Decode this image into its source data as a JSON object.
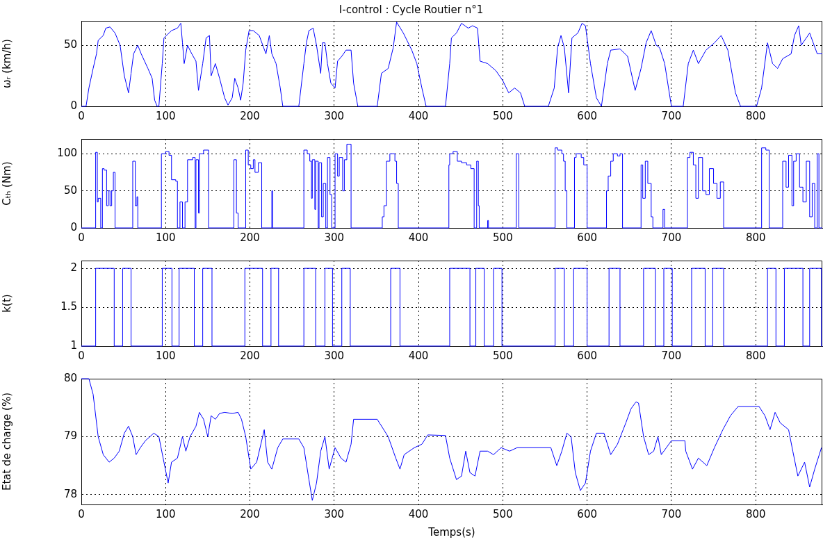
{
  "chart_data": [
    {
      "type": "line",
      "title": "I-control : Cycle Routier n°1",
      "ylabel": "ωᵣ (km/h)",
      "color": "#0000ff",
      "marker": "none",
      "grid": true,
      "legend": false,
      "xlim": [
        0,
        879
      ],
      "xticks": [
        0,
        100,
        200,
        300,
        400,
        500,
        600,
        700,
        800
      ],
      "ylim": [
        0,
        70
      ],
      "yticks": [
        0,
        50
      ],
      "x": [
        0,
        5.6,
        9,
        14,
        18,
        20,
        26,
        29,
        34,
        40,
        46,
        51,
        56,
        59,
        62,
        67,
        71,
        79,
        84,
        87,
        90,
        92,
        96,
        98,
        107,
        114,
        118,
        120,
        122,
        126,
        131,
        136,
        139,
        144,
        148,
        152,
        154,
        159,
        164,
        170,
        174,
        179,
        182,
        186,
        189,
        192,
        195,
        199,
        204,
        211,
        219,
        223,
        226,
        231,
        236,
        239,
        258,
        264,
        267,
        270,
        275,
        279,
        284,
        286,
        289,
        292,
        296,
        301,
        304,
        309,
        314,
        320,
        323,
        328,
        351,
        356,
        364,
        370,
        374,
        382,
        392,
        398,
        404,
        409,
        432,
        437,
        439,
        445,
        451,
        459,
        464,
        470,
        473,
        482,
        492,
        500,
        507,
        514,
        521,
        526,
        554,
        561,
        565,
        569,
        573,
        578,
        582,
        589,
        594,
        598,
        604,
        611,
        617,
        624,
        628,
        639,
        648,
        657,
        664,
        670,
        676,
        682,
        686,
        692,
        700,
        714,
        720,
        726,
        732,
        741,
        751,
        759,
        767,
        776,
        782,
        801,
        807,
        814,
        820,
        826,
        832,
        842,
        846,
        851,
        854,
        864,
        873,
        879
      ],
      "values": [
        0,
        0,
        15,
        31,
        43,
        54,
        58,
        64,
        65,
        60,
        50,
        25,
        11,
        27,
        43,
        50,
        43,
        31,
        23,
        5,
        0,
        0,
        35,
        56,
        62,
        64,
        68,
        52,
        35,
        50,
        43,
        37,
        13,
        35,
        56,
        58,
        25,
        35,
        23,
        7,
        1,
        7,
        23,
        15,
        5,
        19,
        46,
        62,
        62,
        58,
        43,
        58,
        43,
        35,
        15,
        0,
        0,
        35,
        52,
        62,
        64,
        50,
        27,
        52,
        52,
        35,
        19,
        15,
        37,
        41,
        46,
        46,
        19,
        0,
        0,
        27,
        31,
        48,
        69,
        60,
        46,
        35,
        15,
        0,
        0,
        35,
        56,
        60,
        68,
        64,
        66,
        64,
        37,
        35,
        29,
        21,
        11,
        15,
        11,
        0,
        0,
        15,
        48,
        58,
        48,
        11,
        56,
        60,
        68,
        66,
        35,
        7,
        0,
        35,
        46,
        47,
        41,
        13,
        31,
        52,
        62,
        50,
        48,
        35,
        0,
        0,
        35,
        46,
        35,
        46,
        52,
        58,
        46,
        11,
        0,
        0,
        15,
        52,
        35,
        31,
        39,
        43,
        58,
        66,
        50,
        60,
        43,
        43
      ]
    },
    {
      "type": "step",
      "ylabel": "Cₜₕ (Nm)",
      "color": "#0000ff",
      "marker": "none",
      "grid": true,
      "legend": false,
      "xlim": [
        0,
        879
      ],
      "xticks": [
        0,
        100,
        200,
        300,
        400,
        500,
        600,
        700,
        800
      ],
      "ylim": [
        0,
        120
      ],
      "yticks": [
        0,
        50,
        100
      ],
      "x": [
        0,
        17,
        19,
        20,
        23,
        25,
        27,
        30,
        32,
        34,
        36,
        38,
        40,
        61,
        64,
        66,
        67,
        95,
        100,
        104,
        107,
        112,
        114,
        117,
        120,
        123,
        126,
        132,
        135,
        136,
        139,
        140,
        145,
        151,
        181,
        184,
        186,
        195,
        198,
        201,
        204,
        206,
        210,
        214,
        226,
        227,
        264,
        268,
        271,
        273,
        274,
        277,
        278,
        281,
        282,
        285,
        287,
        290,
        292,
        295,
        297,
        301,
        304,
        306,
        310,
        312,
        315,
        320,
        357,
        359,
        362,
        366,
        372,
        374,
        376,
        436,
        437,
        441,
        446,
        451,
        457,
        462,
        466,
        469,
        471,
        472,
        482,
        483,
        516,
        519,
        562,
        565,
        570,
        572,
        574,
        576,
        585,
        587,
        593,
        596,
        600,
        623,
        625,
        628,
        631,
        636,
        639,
        642,
        664,
        666,
        669,
        672,
        676,
        678,
        690,
        692,
        719,
        722,
        726,
        729,
        732,
        737,
        741,
        745,
        750,
        754,
        758,
        762,
        807,
        812,
        816,
        832,
        836,
        839,
        843,
        845,
        848,
        852,
        856,
        860,
        864,
        867,
        870,
        873,
        875,
        879
      ],
      "values": [
        0,
        102,
        35,
        40,
        0,
        80,
        78,
        30,
        50,
        30,
        50,
        75,
        0,
        90,
        30,
        42,
        0,
        100,
        103,
        98,
        65,
        63,
        0,
        35,
        0,
        35,
        92,
        95,
        0,
        92,
        20,
        100,
        105,
        0,
        92,
        20,
        0,
        105,
        85,
        80,
        92,
        75,
        88,
        0,
        50,
        0,
        105,
        100,
        90,
        40,
        92,
        25,
        90,
        0,
        88,
        15,
        60,
        0,
        95,
        45,
        0,
        100,
        70,
        95,
        50,
        92,
        113,
        0,
        15,
        30,
        90,
        100,
        90,
        60,
        0,
        85,
        100,
        103,
        90,
        88,
        85,
        80,
        0,
        90,
        30,
        0,
        10,
        0,
        100,
        0,
        108,
        105,
        100,
        90,
        50,
        0,
        95,
        100,
        95,
        85,
        0,
        50,
        70,
        90,
        100,
        97,
        100,
        0,
        85,
        40,
        90,
        60,
        15,
        0,
        25,
        0,
        95,
        102,
        85,
        40,
        95,
        50,
        45,
        80,
        60,
        40,
        62,
        0,
        108,
        105,
        0,
        90,
        55,
        98,
        30,
        90,
        100,
        55,
        35,
        90,
        15,
        60,
        0,
        100,
        0,
        0
      ]
    },
    {
      "type": "step",
      "ylabel": "k(t)",
      "color": "#0000ff",
      "marker": "none",
      "grid": true,
      "legend": false,
      "xlim": [
        0,
        879
      ],
      "xticks": [
        0,
        100,
        200,
        300,
        400,
        500,
        600,
        700,
        800
      ],
      "ylim": [
        1,
        2.1
      ],
      "yticks": [
        1,
        1.5,
        2
      ],
      "x": [
        0,
        17,
        39,
        49,
        59,
        96,
        107.5,
        116,
        134,
        144,
        155,
        194,
        215,
        225,
        234,
        264,
        278,
        289,
        298,
        309,
        319,
        367,
        378,
        437,
        461,
        468,
        478,
        489,
        499,
        562,
        573,
        584,
        600,
        626,
        639,
        667,
        681,
        691,
        701,
        724,
        740,
        749,
        762,
        814,
        824,
        834,
        856,
        864,
        878,
        879
      ],
      "values": [
        1,
        2,
        1,
        2,
        1,
        2,
        1,
        2,
        1,
        2,
        1,
        2,
        1,
        2,
        1,
        2,
        1,
        2,
        1,
        2,
        1,
        2,
        1,
        2,
        1,
        2,
        1,
        2,
        1,
        2,
        1,
        2,
        1,
        2,
        1,
        2,
        1,
        2,
        1,
        2,
        1,
        2,
        1,
        2,
        1,
        2,
        1,
        2,
        1,
        1
      ]
    },
    {
      "type": "line",
      "ylabel": "Etat de charge (%)",
      "xlabel": "Temps(s)",
      "color": "#0000ff",
      "marker": "none",
      "grid": true,
      "legend": false,
      "xlim": [
        0,
        879
      ],
      "xticks": [
        0,
        100,
        200,
        300,
        400,
        500,
        600,
        700,
        800
      ],
      "ylim": [
        77.83,
        80
      ],
      "yticks": [
        78,
        79,
        80
      ],
      "x": [
        0,
        9,
        14,
        20,
        26,
        33,
        39,
        45,
        51,
        56,
        61,
        65,
        70,
        76,
        86,
        92,
        98,
        103,
        107,
        114,
        120,
        124,
        129,
        136,
        140,
        145,
        150,
        154,
        159,
        164,
        170,
        179,
        186,
        190,
        195,
        201,
        208,
        217,
        221,
        226,
        233,
        239,
        258,
        264,
        270,
        274,
        279,
        284,
        289,
        294,
        301,
        308,
        314,
        320,
        323,
        329,
        351,
        364,
        373,
        378,
        383,
        395,
        404,
        411,
        432,
        437,
        445,
        451,
        456,
        461,
        467,
        473,
        482,
        489,
        498,
        508,
        517,
        557,
        564,
        570,
        576,
        581,
        586,
        592,
        598,
        604,
        611,
        620,
        628,
        636,
        646,
        652,
        658,
        661,
        667,
        673,
        679,
        684,
        688,
        700,
        716,
        717,
        725,
        732,
        742,
        751,
        761,
        770,
        779,
        804,
        811,
        817,
        823,
        829,
        839,
        844,
        850,
        858,
        864,
        870,
        878
      ],
      "values": [
        80,
        80,
        79.73,
        79,
        78.69,
        78.56,
        78.63,
        78.75,
        79.06,
        79.18,
        79,
        78.69,
        78.81,
        78.93,
        79.06,
        79,
        78.56,
        78.2,
        78.56,
        78.63,
        79,
        78.75,
        79,
        79.18,
        79.42,
        79.3,
        79,
        79.36,
        79.3,
        79.4,
        79.42,
        79.4,
        79.42,
        79.3,
        79,
        78.44,
        78.56,
        79.12,
        78.56,
        78.44,
        78.81,
        78.96,
        78.96,
        78.81,
        78.26,
        77.9,
        78.2,
        78.75,
        79,
        78.44,
        78.81,
        78.63,
        78.56,
        78.87,
        79.3,
        79.3,
        79.3,
        79,
        78.63,
        78.44,
        78.69,
        78.81,
        78.87,
        79.03,
        79.02,
        78.63,
        78.26,
        78.32,
        78.75,
        78.38,
        78.32,
        78.75,
        78.75,
        78.69,
        78.81,
        78.75,
        78.81,
        78.81,
        78.5,
        78.75,
        79.06,
        79,
        78.38,
        78.07,
        78.2,
        78.75,
        79.06,
        79.06,
        78.69,
        78.87,
        79.24,
        79.48,
        79.6,
        79.58,
        79,
        78.69,
        78.75,
        79,
        78.69,
        78.93,
        78.93,
        78.75,
        78.44,
        78.63,
        78.5,
        78.81,
        79.12,
        79.36,
        79.52,
        79.52,
        79.36,
        79.12,
        79.42,
        79.24,
        79.12,
        78.75,
        78.32,
        78.56,
        78.13,
        78.44,
        78.81
      ]
    }
  ]
}
